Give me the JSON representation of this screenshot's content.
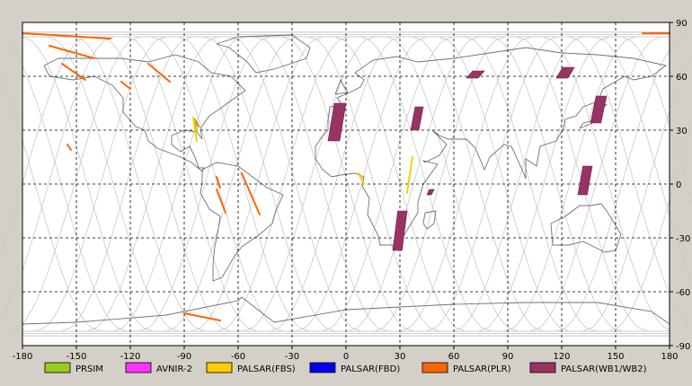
{
  "map": {
    "lon_range": [
      -180,
      180
    ],
    "lat_range": [
      -90,
      90
    ],
    "x_ticks": [
      "-180",
      "-150",
      "-120",
      "-90",
      "-60",
      "-30",
      "0",
      "30",
      "60",
      "90",
      "120",
      "150",
      "180"
    ],
    "y_ticks": [
      "90",
      "60",
      "30",
      "0",
      "-30",
      "-60",
      "-90"
    ],
    "grid_style": "dashed",
    "orbit_track_color": "#c8c8c8",
    "coastline_color": "#707070"
  },
  "legend": [
    {
      "label": "PRSIM",
      "color": "#99cc22",
      "icon": "swatch-prism"
    },
    {
      "label": "AVNIR-2",
      "color": "#ff33ff",
      "icon": "swatch-avnir2"
    },
    {
      "label": "PALSAR(FBS)",
      "color": "#ffcc00",
      "icon": "swatch-palsar-fbs"
    },
    {
      "label": "PALSAR(FBD)",
      "color": "#0000ee",
      "icon": "swatch-palsar-fbd"
    },
    {
      "label": "PALSAR(PLR)",
      "color": "#ff6600",
      "icon": "swatch-palsar-plr"
    },
    {
      "label": "PALSAR(WB1/WB2)",
      "color": "#993366",
      "icon": "swatch-palsar-wb"
    }
  ],
  "observations": {
    "wb_strips": [
      {
        "lon": [
          -10,
          0
        ],
        "lat": [
          24,
          45
        ]
      },
      {
        "lon": [
          36,
          43
        ],
        "lat": [
          30,
          43
        ]
      },
      {
        "lon": [
          67,
          77
        ],
        "lat": [
          59,
          63
        ]
      },
      {
        "lon": [
          117,
          127
        ],
        "lat": [
          59,
          65
        ]
      },
      {
        "lon": [
          136,
          145
        ],
        "lat": [
          34,
          49
        ]
      },
      {
        "lon": [
          129,
          137
        ],
        "lat": [
          -6,
          10
        ]
      },
      {
        "lon": [
          26,
          34
        ],
        "lat": [
          -37,
          -15
        ]
      },
      {
        "lon": [
          45,
          49
        ],
        "lat": [
          -6,
          -3
        ]
      }
    ],
    "plr_lines": [
      {
        "from": [
          -180,
          84
        ],
        "to": [
          -131,
          81
        ]
      },
      {
        "from": [
          -165,
          77
        ],
        "to": [
          -140,
          70
        ]
      },
      {
        "from": [
          -158,
          67
        ],
        "to": [
          -145,
          58
        ]
      },
      {
        "from": [
          -110,
          67
        ],
        "to": [
          -98,
          57
        ]
      },
      {
        "from": [
          -125,
          57
        ],
        "to": [
          -120,
          53
        ]
      },
      {
        "from": [
          -90,
          -72
        ],
        "to": [
          -70,
          -76
        ]
      },
      {
        "from": [
          165,
          84
        ],
        "to": [
          180,
          84
        ]
      },
      {
        "from": [
          -58,
          6
        ],
        "to": [
          -48,
          -17
        ]
      },
      {
        "from": [
          -72,
          -3
        ],
        "to": [
          -67,
          -16
        ]
      },
      {
        "from": [
          -155,
          22
        ],
        "to": [
          -153,
          19
        ]
      },
      {
        "from": [
          -72,
          4
        ],
        "to": [
          -70,
          -2
        ]
      },
      {
        "from": [
          -84,
          36
        ],
        "to": [
          -82,
          32
        ]
      }
    ],
    "fbs_lines": [
      {
        "from": [
          -85,
          37
        ],
        "to": [
          -83,
          24
        ]
      },
      {
        "from": [
          37,
          15
        ],
        "to": [
          34,
          -5
        ]
      },
      {
        "from": [
          7,
          6
        ],
        "to": [
          10,
          0
        ]
      }
    ],
    "prism_lines": [
      {
        "from": [
          -84,
          36
        ],
        "to": [
          -83,
          29
        ]
      }
    ]
  }
}
